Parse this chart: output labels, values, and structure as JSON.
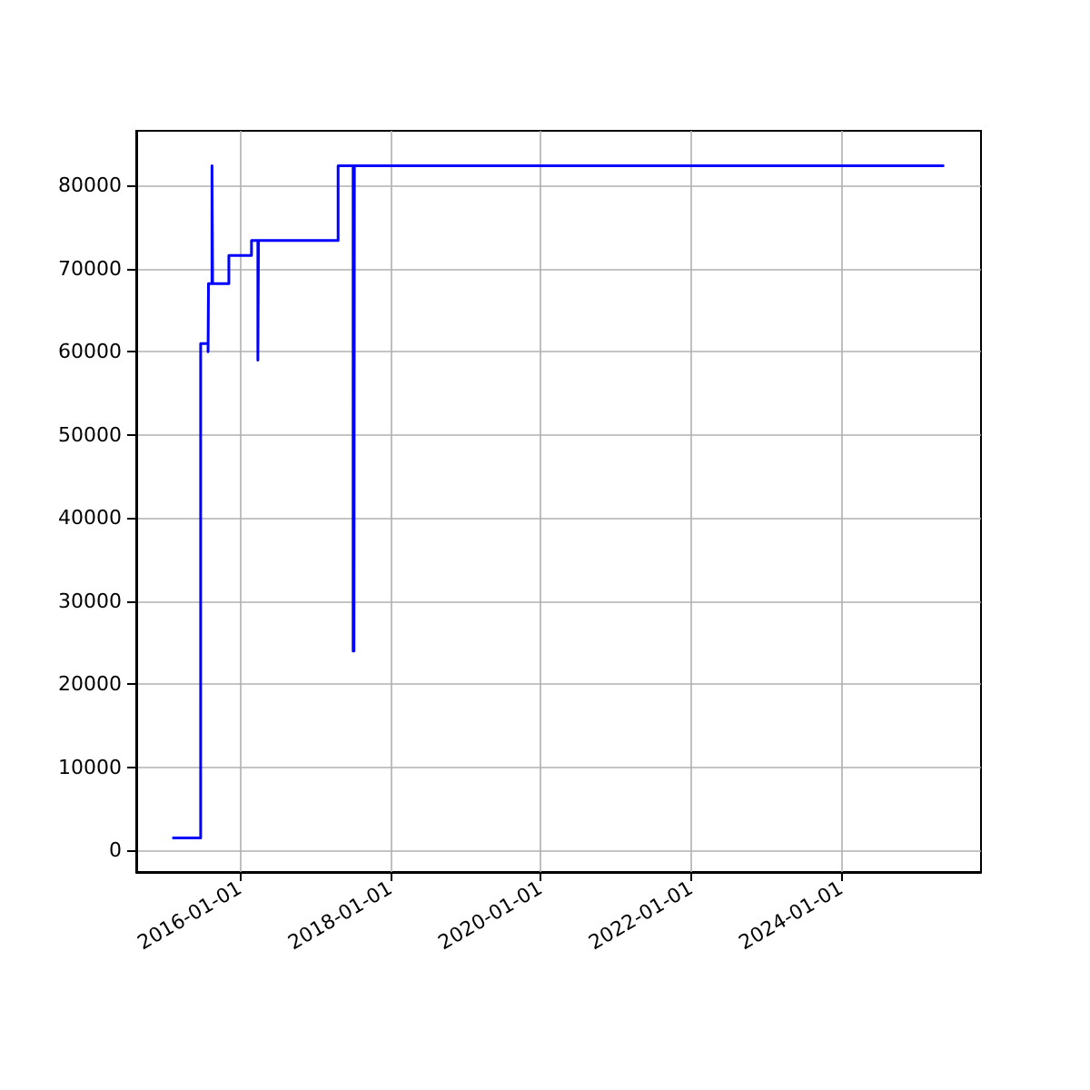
{
  "chart_data": {
    "type": "step",
    "color": "#0000ff",
    "x": [
      "2015-02-06",
      "2015-06-24",
      "2015-07-30",
      "2015-08-01",
      "2015-08-18",
      "2015-08-21",
      "2015-11-08",
      "2016-02-26",
      "2016-03-28",
      "2016-03-31",
      "2017-04-22",
      "2017-07-04",
      "2017-07-06",
      "2017-07-08",
      "2017-07-10",
      "2025-05-15"
    ],
    "values": [
      1500,
      61000,
      60000,
      68200,
      82400,
      68200,
      71600,
      73400,
      59000,
      73400,
      82400,
      24000,
      82400,
      24000,
      82400,
      82400
    ],
    "xlim": [
      "2014-08-15",
      "2025-11-10"
    ],
    "xticks": [
      "2016-01-01",
      "2018-01-01",
      "2020-01-01",
      "2022-01-01",
      "2024-01-01"
    ],
    "ylim": [
      -2600,
      86600
    ],
    "yticks": [
      0,
      10000,
      20000,
      30000,
      40000,
      50000,
      60000,
      70000,
      80000
    ],
    "grid": true
  }
}
